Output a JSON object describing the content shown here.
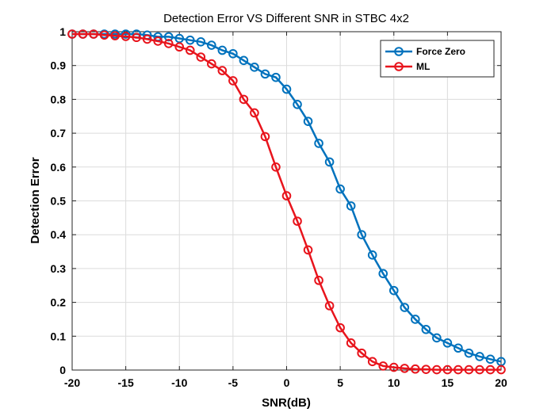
{
  "chart_data": {
    "type": "line",
    "title": "Detection Error VS Different SNR in STBC 4x2",
    "xlabel": "SNR(dB)",
    "ylabel": "Detection Error",
    "xlim": [
      -20,
      20
    ],
    "ylim": [
      0,
      1
    ],
    "xticks": [
      -20,
      -15,
      -10,
      -5,
      0,
      5,
      10,
      15,
      20
    ],
    "yticks": [
      0,
      0.1,
      0.2,
      0.3,
      0.4,
      0.5,
      0.6,
      0.7,
      0.8,
      0.9,
      1
    ],
    "x": [
      -20,
      -19,
      -18,
      -17,
      -16,
      -15,
      -14,
      -13,
      -12,
      -11,
      -10,
      -9,
      -8,
      -7,
      -6,
      -5,
      -4,
      -3,
      -2,
      -1,
      0,
      1,
      2,
      3,
      4,
      5,
      6,
      7,
      8,
      9,
      10,
      11,
      12,
      13,
      14,
      15,
      16,
      17,
      18,
      19,
      20
    ],
    "grid": true,
    "legend_position": "top-right",
    "series": [
      {
        "name": "Force Zero",
        "color": "#0072BD",
        "marker": "circle",
        "values": [
          0.993,
          0.993,
          0.993,
          0.993,
          0.993,
          0.993,
          0.993,
          0.99,
          0.985,
          0.985,
          0.98,
          0.975,
          0.97,
          0.96,
          0.945,
          0.935,
          0.915,
          0.895,
          0.875,
          0.865,
          0.83,
          0.785,
          0.735,
          0.67,
          0.615,
          0.535,
          0.485,
          0.4,
          0.34,
          0.285,
          0.235,
          0.185,
          0.15,
          0.12,
          0.095,
          0.08,
          0.065,
          0.05,
          0.04,
          0.032,
          0.025
        ]
      },
      {
        "name": "ML",
        "color": "#E8141C",
        "marker": "circle",
        "values": [
          0.993,
          0.993,
          0.993,
          0.99,
          0.988,
          0.986,
          0.983,
          0.978,
          0.972,
          0.965,
          0.955,
          0.945,
          0.925,
          0.905,
          0.885,
          0.855,
          0.8,
          0.76,
          0.69,
          0.6,
          0.515,
          0.44,
          0.355,
          0.265,
          0.19,
          0.125,
          0.08,
          0.05,
          0.025,
          0.012,
          0.008,
          0.005,
          0.003,
          0.002,
          0.001,
          0.001,
          0.001,
          0.001,
          0.001,
          0.001,
          0.001
        ]
      }
    ]
  }
}
